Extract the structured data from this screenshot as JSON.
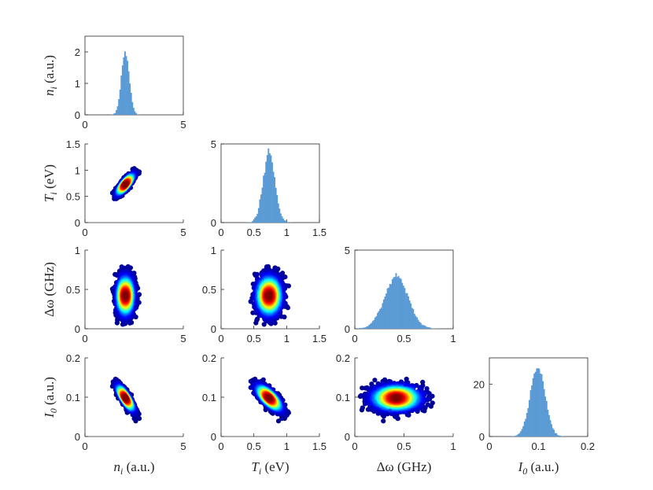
{
  "chart_data": {
    "type": "corner-plot",
    "histogram_color": "#5b9bd5",
    "colormap": [
      "#00008f",
      "#0000ff",
      "#0080ff",
      "#00ffff",
      "#80ff80",
      "#ffff00",
      "#ff8000",
      "#ff0000",
      "#800000"
    ],
    "variables": [
      {
        "id": "ni",
        "label_base": "n",
        "label_sub": "i",
        "label_unit": " (a.u.)",
        "label_italic": true,
        "range": [
          0,
          5
        ],
        "ticks": [
          0,
          5
        ],
        "tick_labels": [
          "0",
          "5"
        ],
        "mean": 2.05,
        "std": 0.2,
        "hist_ylim": [
          0,
          2.5
        ],
        "hist_yticks": [
          0,
          1,
          2
        ],
        "hist_ytick_labels": [
          "0",
          "1",
          "2"
        ]
      },
      {
        "id": "Ti",
        "label_base": "T",
        "label_sub": "i",
        "label_unit": " (eV)",
        "label_italic": true,
        "range": [
          0,
          1.5
        ],
        "ticks": [
          0,
          0.5,
          1,
          1.5
        ],
        "tick_labels": [
          "0",
          "0.5",
          "1",
          "1.5"
        ],
        "mean": 0.73,
        "std": 0.09,
        "hist_ylim": [
          0,
          5
        ],
        "hist_yticks": [
          0,
          5
        ],
        "hist_ytick_labels": [
          "0",
          "5"
        ]
      },
      {
        "id": "dw",
        "label_base": "Δω",
        "label_sub": "",
        "label_unit": " (GHz)",
        "label_italic": false,
        "range": [
          0,
          1
        ],
        "ticks": [
          0,
          0.5,
          1
        ],
        "tick_labels": [
          "0",
          "0.5",
          "1"
        ],
        "mean": 0.42,
        "std": 0.12,
        "hist_ylim": [
          0,
          5
        ],
        "hist_yticks": [
          0,
          5
        ],
        "hist_ytick_labels": [
          "0",
          "5"
        ]
      },
      {
        "id": "I0",
        "label_base": "I",
        "label_sub": "0",
        "label_unit": " (a.u.)",
        "label_italic": true,
        "range": [
          0,
          0.2
        ],
        "ticks": [
          0,
          0.1,
          0.2
        ],
        "tick_labels": [
          "0",
          "0.1",
          "0.2"
        ],
        "mean": 0.098,
        "std": 0.015,
        "hist_ylim": [
          0,
          30
        ],
        "hist_yticks": [
          0,
          20
        ],
        "hist_ytick_labels": [
          "0",
          "20"
        ]
      }
    ],
    "correlations": [
      [
        1.0,
        0.85,
        0.0,
        -0.85
      ],
      [
        0.85,
        1.0,
        0.0,
        -0.75
      ],
      [
        0.0,
        0.0,
        1.0,
        0.0
      ],
      [
        -0.85,
        -0.75,
        0.0,
        1.0
      ]
    ],
    "histogram": {
      "bins": 80,
      "samples": 20000
    },
    "scatter": {
      "samples": 2200
    }
  }
}
